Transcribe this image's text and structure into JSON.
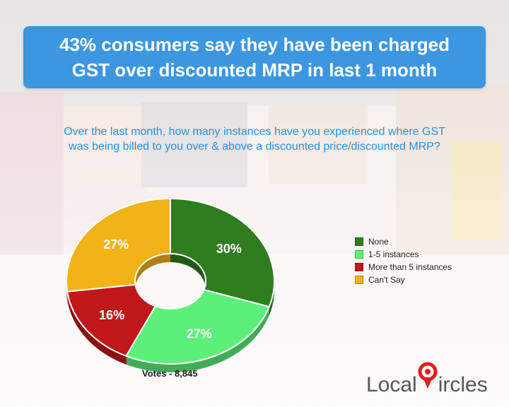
{
  "title": {
    "line1": "43% consumers say they have been charged",
    "line2": "GST over discounted MRP in last 1 month"
  },
  "question": {
    "line1": "Over the last month, how many instances have you experienced where GST",
    "line2": "was being billed to you over & above a discounted price/discounted MRP?"
  },
  "chart_data": {
    "type": "pie",
    "donut": true,
    "categories": [
      "None",
      "1-5 instances",
      "More than 5 instances",
      "Can't Say"
    ],
    "values": [
      30,
      27,
      16,
      27
    ],
    "labels": [
      "30%",
      "27%",
      "16%",
      "27%"
    ],
    "colors": [
      "#2e7d1f",
      "#5cef7a",
      "#c0171b",
      "#f2b318"
    ],
    "legend_position": "right"
  },
  "footer": {
    "votes": "Votes - 8,845"
  },
  "logo": {
    "left": "Local",
    "right": "ircles",
    "accent": "#e02020"
  }
}
